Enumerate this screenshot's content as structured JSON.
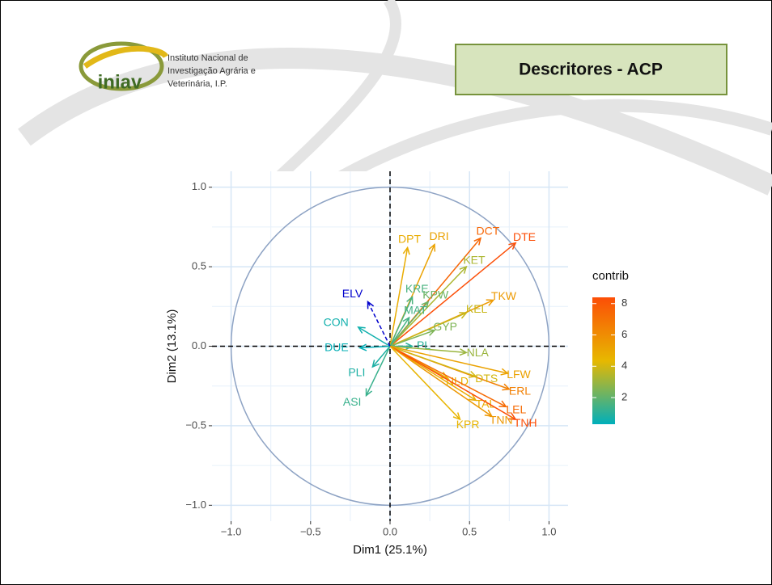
{
  "header": {
    "title": "Descritores - ACP",
    "logo_word": "iniav",
    "logo_lines": [
      "Instituto Nacional de",
      "Investigação Agrária e",
      "Veterinária, I.P."
    ]
  },
  "chart_data": {
    "type": "vector",
    "x_label": "Dim1 (25.1%)",
    "y_label": "Dim2 (13.1%)",
    "xlim": [
      -1.12,
      1.12
    ],
    "ylim": [
      -1.1,
      1.1
    ],
    "xticks": [
      {
        "value": -1,
        "label": "−1.0"
      },
      {
        "value": -0.5,
        "label": "−0.5"
      },
      {
        "value": 0,
        "label": "0.0"
      },
      {
        "value": 0.5,
        "label": "0.5"
      },
      {
        "value": 1,
        "label": "1.0"
      }
    ],
    "yticks": [
      {
        "value": -1,
        "label": "−1.0"
      },
      {
        "value": -0.5,
        "label": "−0.5"
      },
      {
        "value": 0,
        "label": "0.0"
      },
      {
        "value": 0.5,
        "label": "0.5"
      },
      {
        "value": 1,
        "label": "1.0"
      }
    ],
    "minor_ticks": [
      -0.75,
      -0.25,
      0.25,
      0.75
    ],
    "grid": true,
    "legend_title": "contrib",
    "clim": [
      0.3,
      8.4
    ],
    "cticks": [
      2,
      4,
      6,
      8
    ],
    "colors": [
      "#00AFBB",
      "#E7B800",
      "#FC4E07"
    ],
    "variables": [
      {
        "name": "DCT",
        "x": 0.57,
        "y": 0.68,
        "contrib": 7.5
      },
      {
        "name": "DTE",
        "x": 0.79,
        "y": 0.65,
        "contrib": 8.4
      },
      {
        "name": "DRI",
        "x": 0.28,
        "y": 0.64,
        "contrib": 5.2
      },
      {
        "name": "DPT",
        "x": 0.11,
        "y": 0.62,
        "contrib": 4.8
      },
      {
        "name": "KET",
        "x": 0.48,
        "y": 0.5,
        "contrib": 3.3
      },
      {
        "name": "KRE",
        "x": 0.14,
        "y": 0.31,
        "contrib": 1.6
      },
      {
        "name": "TKW",
        "x": 0.65,
        "y": 0.29,
        "contrib": 5.5
      },
      {
        "name": "KEL",
        "x": 0.48,
        "y": 0.21,
        "contrib": 3.8
      },
      {
        "name": "KPW",
        "x": 0.24,
        "y": 0.28,
        "contrib": 2.2
      },
      {
        "name": "MAT",
        "x": 0.12,
        "y": 0.18,
        "contrib": 1.5
      },
      {
        "name": "GYP",
        "x": 0.28,
        "y": 0.1,
        "contrib": 2.5
      },
      {
        "name": "PL",
        "x": 0.14,
        "y": 0.0,
        "contrib": 1.0
      },
      {
        "name": "CON",
        "x": -0.2,
        "y": 0.12,
        "contrib": 0.6
      },
      {
        "name": "DUE",
        "x": -0.19,
        "y": -0.01,
        "contrib": 0.4
      },
      {
        "name": "PLI",
        "x": -0.11,
        "y": -0.13,
        "contrib": 0.8
      },
      {
        "name": "ASI",
        "x": -0.15,
        "y": -0.31,
        "contrib": 1.3
      },
      {
        "name": "NLA",
        "x": 0.48,
        "y": -0.04,
        "contrib": 3.0
      },
      {
        "name": "LFW",
        "x": 0.74,
        "y": -0.17,
        "contrib": 5.2
      },
      {
        "name": "ERL",
        "x": 0.75,
        "y": -0.27,
        "contrib": 6.5
      },
      {
        "name": "DTS",
        "x": 0.54,
        "y": -0.19,
        "contrib": 4.0
      },
      {
        "name": "NLD",
        "x": 0.36,
        "y": -0.2,
        "contrib": 4.5
      },
      {
        "name": "TAL",
        "x": 0.54,
        "y": -0.34,
        "contrib": 4.8
      },
      {
        "name": "LEL",
        "x": 0.73,
        "y": -0.38,
        "contrib": 7.3
      },
      {
        "name": "TNH",
        "x": 0.79,
        "y": -0.46,
        "contrib": 8.4
      },
      {
        "name": "TNN",
        "x": 0.64,
        "y": -0.44,
        "contrib": 5.6
      },
      {
        "name": "KPR",
        "x": 0.44,
        "y": -0.46,
        "contrib": 4.5
      }
    ],
    "supplementary_color": "#0000CD",
    "supplementary": [
      {
        "name": "ELV",
        "x": -0.14,
        "y": 0.28
      }
    ]
  }
}
